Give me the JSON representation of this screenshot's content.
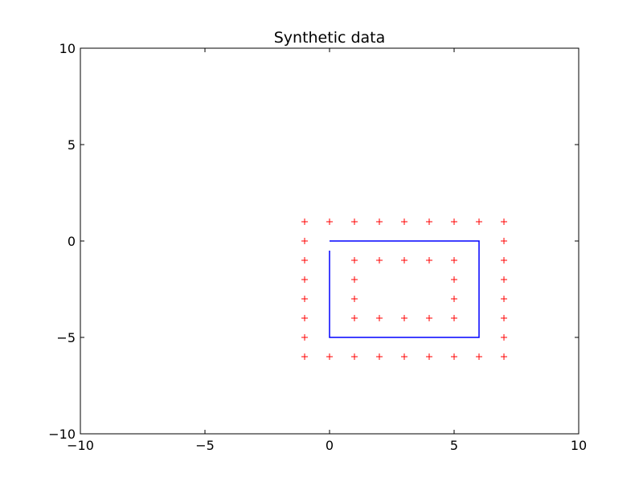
{
  "chart_data": {
    "type": "line",
    "title": "Synthetic data",
    "xlabel": "",
    "ylabel": "",
    "xlim": [
      -10,
      10
    ],
    "ylim": [
      -10,
      10
    ],
    "x_ticks": [
      -10,
      -5,
      0,
      5,
      10
    ],
    "y_ticks": [
      -10,
      -5,
      0,
      5,
      10
    ],
    "x_tick_labels": [
      "−10",
      "−5",
      "0",
      "5",
      "10"
    ],
    "y_tick_labels": [
      "−10",
      "−5",
      "0",
      "5",
      "10"
    ],
    "grid": false,
    "series": [
      {
        "type": "line",
        "color": "#0000ff",
        "x": [
          0,
          0,
          6,
          6,
          0
        ],
        "y": [
          -0.5,
          -5,
          -5,
          0,
          0
        ]
      },
      {
        "type": "scatter",
        "marker": "plus",
        "color": "#ff0000",
        "points": [
          [
            -1,
            1
          ],
          [
            0,
            1
          ],
          [
            1,
            1
          ],
          [
            2,
            1
          ],
          [
            3,
            1
          ],
          [
            4,
            1
          ],
          [
            5,
            1
          ],
          [
            6,
            1
          ],
          [
            7,
            1
          ],
          [
            -1,
            0
          ],
          [
            7,
            0
          ],
          [
            -1,
            -1
          ],
          [
            1,
            -1
          ],
          [
            2,
            -1
          ],
          [
            3,
            -1
          ],
          [
            4,
            -1
          ],
          [
            5,
            -1
          ],
          [
            7,
            -1
          ],
          [
            -1,
            -2
          ],
          [
            1,
            -2
          ],
          [
            5,
            -2
          ],
          [
            7,
            -2
          ],
          [
            -1,
            -3
          ],
          [
            1,
            -3
          ],
          [
            5,
            -3
          ],
          [
            7,
            -3
          ],
          [
            -1,
            -4
          ],
          [
            1,
            -4
          ],
          [
            2,
            -4
          ],
          [
            3,
            -4
          ],
          [
            4,
            -4
          ],
          [
            5,
            -4
          ],
          [
            7,
            -4
          ],
          [
            -1,
            -5
          ],
          [
            7,
            -5
          ],
          [
            -1,
            -6
          ],
          [
            0,
            -6
          ],
          [
            1,
            -6
          ],
          [
            2,
            -6
          ],
          [
            3,
            -6
          ],
          [
            4,
            -6
          ],
          [
            5,
            -6
          ],
          [
            6,
            -6
          ],
          [
            7,
            -6
          ]
        ]
      }
    ]
  }
}
